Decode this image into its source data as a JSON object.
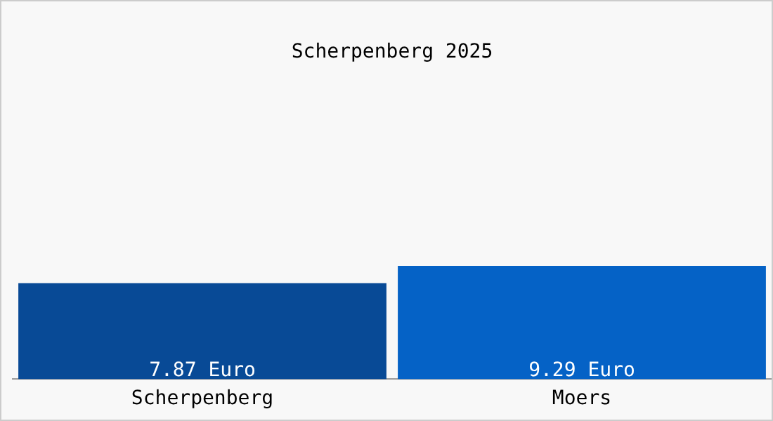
{
  "chart_data": {
    "type": "bar",
    "title": "Scherpenberg 2025",
    "categories": [
      "Scherpenberg",
      "Moers"
    ],
    "values": [
      7.87,
      9.29
    ],
    "colors": [
      "#084a96",
      "#0562c6"
    ],
    "value_labels": [
      "7.87 Euro",
      "9.29 Euro"
    ],
    "grid": false,
    "legend": false
  }
}
